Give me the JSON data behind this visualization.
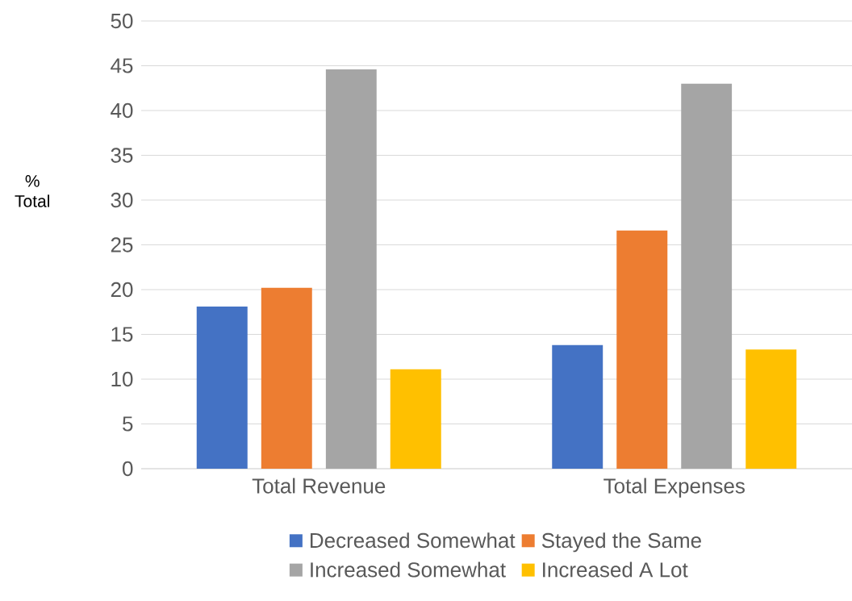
{
  "chart_data": {
    "type": "bar",
    "ylabel": "% Total",
    "categories": [
      "Total Revenue",
      "Total Expenses"
    ],
    "series": [
      {
        "name": "Decreased Somewhat",
        "color": "#4472c4",
        "values": [
          18.1,
          13.8
        ]
      },
      {
        "name": "Stayed the Same",
        "color": "#ed7d31",
        "values": [
          20.2,
          26.6
        ]
      },
      {
        "name": "Increased Somewhat",
        "color": "#a5a5a5",
        "values": [
          44.6,
          43.0
        ]
      },
      {
        "name": "Increased A Lot",
        "color": "#ffc000",
        "values": [
          11.1,
          13.3
        ]
      }
    ],
    "ylim": [
      0,
      50
    ],
    "yticks": [
      0,
      5,
      10,
      15,
      20,
      25,
      30,
      35,
      40,
      45,
      50
    ],
    "grid": "y",
    "legend": "bottom"
  }
}
